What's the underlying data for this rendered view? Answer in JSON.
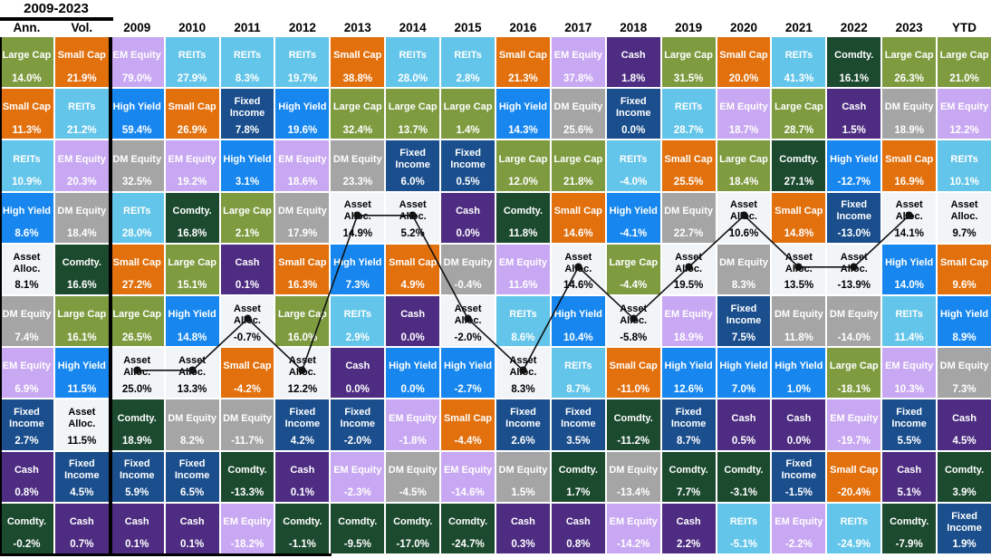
{
  "header": {
    "period_label": "2009-2023",
    "col_labels": [
      "Ann.",
      "Vol.",
      "2009",
      "2010",
      "2011",
      "2012",
      "2013",
      "2014",
      "2015",
      "2016",
      "2017",
      "2018",
      "2019",
      "2020",
      "2021",
      "2022",
      "2023",
      "YTD"
    ]
  },
  "assets": {
    "Large Cap": {
      "bg": "#7e9b40",
      "fg": "#ffffff"
    },
    "Small Cap": {
      "bg": "#e2700d",
      "fg": "#ffffff"
    },
    "REITs": {
      "bg": "#63c5e9",
      "fg": "#ffffff"
    },
    "High Yield": {
      "bg": "#1787ef",
      "fg": "#ffffff"
    },
    "Asset Alloc.": {
      "bg": "#f2f5f8",
      "fg": "#000000"
    },
    "DM Equity": {
      "bg": "#a5a5a5",
      "fg": "#ffffff"
    },
    "EM Equity": {
      "bg": "#c8a8f2",
      "fg": "#ffffff"
    },
    "Fixed Income": {
      "bg": "#1a4e8c",
      "fg": "#ffffff"
    },
    "Cash": {
      "bg": "#4d2c82",
      "fg": "#ffffff"
    },
    "Comdty.": {
      "bg": "#1c4a2f",
      "fg": "#ffffff"
    }
  },
  "chart_data": {
    "type": "table",
    "title": "2009-2023",
    "description": "Asset class returns quilt: each column ranks asset classes by return for that period; black line traces Asset Alloc. across years.",
    "columns": [
      {
        "label": "Ann.",
        "cells": [
          [
            "Large Cap",
            "14.0%"
          ],
          [
            "Small Cap",
            "11.3%"
          ],
          [
            "REITs",
            "10.9%"
          ],
          [
            "High Yield",
            "8.6%"
          ],
          [
            "Asset Alloc.",
            "8.1%"
          ],
          [
            "DM Equity",
            "7.4%"
          ],
          [
            "EM Equity",
            "6.9%"
          ],
          [
            "Fixed Income",
            "2.7%"
          ],
          [
            "Cash",
            "0.8%"
          ],
          [
            "Comdty.",
            "-0.2%"
          ]
        ]
      },
      {
        "label": "Vol.",
        "cells": [
          [
            "Small Cap",
            "21.9%"
          ],
          [
            "REITs",
            "21.2%"
          ],
          [
            "EM Equity",
            "20.3%"
          ],
          [
            "DM Equity",
            "18.4%"
          ],
          [
            "Comdty.",
            "16.6%"
          ],
          [
            "Large Cap",
            "16.1%"
          ],
          [
            "High Yield",
            "11.5%"
          ],
          [
            "Asset Alloc.",
            "11.5%"
          ],
          [
            "Fixed Income",
            "4.5%"
          ],
          [
            "Cash",
            "0.7%"
          ]
        ]
      },
      {
        "label": "2009",
        "cells": [
          [
            "EM Equity",
            "79.0%"
          ],
          [
            "High Yield",
            "59.4%"
          ],
          [
            "DM Equity",
            "32.5%"
          ],
          [
            "REITs",
            "28.0%"
          ],
          [
            "Small Cap",
            "27.2%"
          ],
          [
            "Large Cap",
            "26.5%"
          ],
          [
            "Asset Alloc.",
            "25.0%"
          ],
          [
            "Comdty.",
            "18.9%"
          ],
          [
            "Fixed Income",
            "5.9%"
          ],
          [
            "Cash",
            "0.1%"
          ]
        ]
      },
      {
        "label": "2010",
        "cells": [
          [
            "REITs",
            "27.9%"
          ],
          [
            "Small Cap",
            "26.9%"
          ],
          [
            "EM Equity",
            "19.2%"
          ],
          [
            "Comdty.",
            "16.8%"
          ],
          [
            "Large Cap",
            "15.1%"
          ],
          [
            "High Yield",
            "14.8%"
          ],
          [
            "Asset Alloc.",
            "13.3%"
          ],
          [
            "DM Equity",
            "8.2%"
          ],
          [
            "Fixed Income",
            "6.5%"
          ],
          [
            "Cash",
            "0.1%"
          ]
        ]
      },
      {
        "label": "2011",
        "cells": [
          [
            "REITs",
            "8.3%"
          ],
          [
            "Fixed Income",
            "7.8%"
          ],
          [
            "High Yield",
            "3.1%"
          ],
          [
            "Large Cap",
            "2.1%"
          ],
          [
            "Cash",
            "0.1%"
          ],
          [
            "Asset Alloc.",
            "-0.7%"
          ],
          [
            "Small Cap",
            "-4.2%"
          ],
          [
            "DM Equity",
            "-11.7%"
          ],
          [
            "Comdty.",
            "-13.3%"
          ],
          [
            "EM Equity",
            "-18.2%"
          ]
        ]
      },
      {
        "label": "2012",
        "cells": [
          [
            "REITs",
            "19.7%"
          ],
          [
            "High Yield",
            "19.6%"
          ],
          [
            "EM Equity",
            "18.6%"
          ],
          [
            "DM Equity",
            "17.9%"
          ],
          [
            "Small Cap",
            "16.3%"
          ],
          [
            "Large Cap",
            "16.0%"
          ],
          [
            "Asset Alloc.",
            "12.2%"
          ],
          [
            "Fixed Income",
            "4.2%"
          ],
          [
            "Cash",
            "0.1%"
          ],
          [
            "Comdty.",
            "-1.1%"
          ]
        ]
      },
      {
        "label": "2013",
        "cells": [
          [
            "Small Cap",
            "38.8%"
          ],
          [
            "Large Cap",
            "32.4%"
          ],
          [
            "DM Equity",
            "23.3%"
          ],
          [
            "Asset Alloc.",
            "14.9%"
          ],
          [
            "High Yield",
            "7.3%"
          ],
          [
            "REITs",
            "2.9%"
          ],
          [
            "Cash",
            "0.0%"
          ],
          [
            "Fixed Income",
            "-2.0%"
          ],
          [
            "EM Equity",
            "-2.3%"
          ],
          [
            "Comdty.",
            "-9.5%"
          ]
        ]
      },
      {
        "label": "2014",
        "cells": [
          [
            "REITs",
            "28.0%"
          ],
          [
            "Large Cap",
            "13.7%"
          ],
          [
            "Fixed Income",
            "6.0%"
          ],
          [
            "Asset Alloc.",
            "5.2%"
          ],
          [
            "Small Cap",
            "4.9%"
          ],
          [
            "Cash",
            "0.0%"
          ],
          [
            "High Yield",
            "0.0%"
          ],
          [
            "EM Equity",
            "-1.8%"
          ],
          [
            "DM Equity",
            "-4.5%"
          ],
          [
            "Comdty.",
            "-17.0%"
          ]
        ]
      },
      {
        "label": "2015",
        "cells": [
          [
            "REITs",
            "2.8%"
          ],
          [
            "Large Cap",
            "1.4%"
          ],
          [
            "Fixed Income",
            "0.5%"
          ],
          [
            "Cash",
            "0.0%"
          ],
          [
            "DM Equity",
            "-0.4%"
          ],
          [
            "Asset Alloc.",
            "-2.0%"
          ],
          [
            "High Yield",
            "-2.7%"
          ],
          [
            "Small Cap",
            "-4.4%"
          ],
          [
            "EM Equity",
            "-14.6%"
          ],
          [
            "Comdty.",
            "-24.7%"
          ]
        ]
      },
      {
        "label": "2016",
        "cells": [
          [
            "Small Cap",
            "21.3%"
          ],
          [
            "High Yield",
            "14.3%"
          ],
          [
            "Large Cap",
            "12.0%"
          ],
          [
            "Comdty.",
            "11.8%"
          ],
          [
            "EM Equity",
            "11.6%"
          ],
          [
            "REITs",
            "8.6%"
          ],
          [
            "Asset Alloc.",
            "8.3%"
          ],
          [
            "Fixed Income",
            "2.6%"
          ],
          [
            "DM Equity",
            "1.5%"
          ],
          [
            "Cash",
            "0.3%"
          ]
        ]
      },
      {
        "label": "2017",
        "cells": [
          [
            "EM Equity",
            "37.8%"
          ],
          [
            "DM Equity",
            "25.6%"
          ],
          [
            "Large Cap",
            "21.8%"
          ],
          [
            "Small Cap",
            "14.6%"
          ],
          [
            "Asset Alloc.",
            "14.6%"
          ],
          [
            "High Yield",
            "10.4%"
          ],
          [
            "REITs",
            "8.7%"
          ],
          [
            "Fixed Income",
            "3.5%"
          ],
          [
            "Comdty.",
            "1.7%"
          ],
          [
            "Cash",
            "0.8%"
          ]
        ]
      },
      {
        "label": "2018",
        "cells": [
          [
            "Cash",
            "1.8%"
          ],
          [
            "Fixed Income",
            "0.0%"
          ],
          [
            "REITs",
            "-4.0%"
          ],
          [
            "High Yield",
            "-4.1%"
          ],
          [
            "Large Cap",
            "-4.4%"
          ],
          [
            "Asset Alloc.",
            "-5.8%"
          ],
          [
            "Small Cap",
            "-11.0%"
          ],
          [
            "Comdty.",
            "-11.2%"
          ],
          [
            "DM Equity",
            "-13.4%"
          ],
          [
            "EM Equity",
            "-14.2%"
          ]
        ]
      },
      {
        "label": "2019",
        "cells": [
          [
            "Large Cap",
            "31.5%"
          ],
          [
            "REITs",
            "28.7%"
          ],
          [
            "Small Cap",
            "25.5%"
          ],
          [
            "DM Equity",
            "22.7%"
          ],
          [
            "Asset Alloc.",
            "19.5%"
          ],
          [
            "EM Equity",
            "18.9%"
          ],
          [
            "High Yield",
            "12.6%"
          ],
          [
            "Fixed Income",
            "8.7%"
          ],
          [
            "Comdty.",
            "7.7%"
          ],
          [
            "Cash",
            "2.2%"
          ]
        ]
      },
      {
        "label": "2020",
        "cells": [
          [
            "Small Cap",
            "20.0%"
          ],
          [
            "EM Equity",
            "18.7%"
          ],
          [
            "Large Cap",
            "18.4%"
          ],
          [
            "Asset Alloc.",
            "10.6%"
          ],
          [
            "DM Equity",
            "8.3%"
          ],
          [
            "Fixed Income",
            "7.5%"
          ],
          [
            "High Yield",
            "7.0%"
          ],
          [
            "Cash",
            "0.5%"
          ],
          [
            "Comdty.",
            "-3.1%"
          ],
          [
            "REITs",
            "-5.1%"
          ]
        ]
      },
      {
        "label": "2021",
        "cells": [
          [
            "REITs",
            "41.3%"
          ],
          [
            "Large Cap",
            "28.7%"
          ],
          [
            "Comdty.",
            "27.1%"
          ],
          [
            "Small Cap",
            "14.8%"
          ],
          [
            "Asset Alloc.",
            "13.5%"
          ],
          [
            "DM Equity",
            "11.8%"
          ],
          [
            "High Yield",
            "1.0%"
          ],
          [
            "Cash",
            "0.0%"
          ],
          [
            "Fixed Income",
            "-1.5%"
          ],
          [
            "EM Equity",
            "-2.2%"
          ]
        ]
      },
      {
        "label": "2022",
        "cells": [
          [
            "Comdty.",
            "16.1%"
          ],
          [
            "Cash",
            "1.5%"
          ],
          [
            "High Yield",
            "-12.7%"
          ],
          [
            "Fixed Income",
            "-13.0%"
          ],
          [
            "Asset Alloc.",
            "-13.9%"
          ],
          [
            "DM Equity",
            "-14.0%"
          ],
          [
            "Large Cap",
            "-18.1%"
          ],
          [
            "EM Equity",
            "-19.7%"
          ],
          [
            "Small Cap",
            "-20.4%"
          ],
          [
            "REITs",
            "-24.9%"
          ]
        ]
      },
      {
        "label": "2023",
        "cells": [
          [
            "Large Cap",
            "26.3%"
          ],
          [
            "DM Equity",
            "18.9%"
          ],
          [
            "Small Cap",
            "16.9%"
          ],
          [
            "Asset Alloc.",
            "14.1%"
          ],
          [
            "High Yield",
            "14.0%"
          ],
          [
            "REITs",
            "11.4%"
          ],
          [
            "EM Equity",
            "10.3%"
          ],
          [
            "Fixed Income",
            "5.5%"
          ],
          [
            "Cash",
            "5.1%"
          ],
          [
            "Comdty.",
            "-7.9%"
          ]
        ]
      },
      {
        "label": "YTD",
        "cells": [
          [
            "Large Cap",
            "21.0%"
          ],
          [
            "EM Equity",
            "12.2%"
          ],
          [
            "REITs",
            "10.1%"
          ],
          [
            "Asset Alloc.",
            "9.7%"
          ],
          [
            "Small Cap",
            "9.6%"
          ],
          [
            "High Yield",
            "8.9%"
          ],
          [
            "DM Equity",
            "7.3%"
          ],
          [
            "Cash",
            "4.5%"
          ],
          [
            "Comdty.",
            "3.9%"
          ],
          [
            "Fixed Income",
            "1.9%"
          ]
        ]
      }
    ],
    "overlay_line": {
      "series": "Asset Alloc.",
      "color": "#111111",
      "year_columns_only": true
    }
  }
}
